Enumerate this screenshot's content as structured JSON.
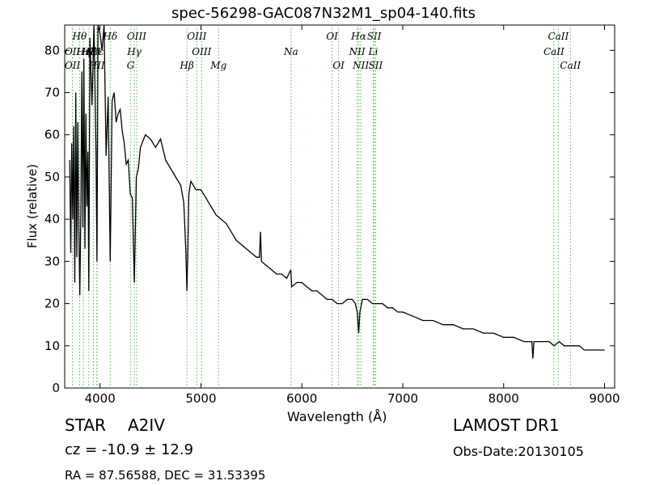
{
  "chart_data": {
    "type": "line",
    "title": "spec-56298-GAC087N32M1_sp04-140.fits",
    "xlabel": "Wavelength (Å)",
    "ylabel": "Flux (relative)",
    "xlim": [
      3650,
      9100
    ],
    "ylim": [
      0,
      86
    ],
    "xticks": [
      4000,
      5000,
      6000,
      7000,
      8000,
      9000
    ],
    "yticks": [
      0,
      10,
      20,
      30,
      40,
      50,
      60,
      70,
      80
    ],
    "grid": false,
    "series": [
      {
        "x": [
          3700,
          3710,
          3720,
          3730,
          3740,
          3750,
          3760,
          3770,
          3780,
          3790,
          3800,
          3810,
          3820,
          3830,
          3840,
          3850,
          3860,
          3870,
          3880,
          3889,
          3900,
          3920,
          3940,
          3960,
          3970,
          3980,
          4000,
          4020,
          4040,
          4060,
          4080,
          4101,
          4120,
          4140,
          4160,
          4180,
          4200,
          4220,
          4240,
          4260,
          4280,
          4300,
          4320,
          4340,
          4360,
          4380,
          4400,
          4450,
          4500,
          4550,
          4600,
          4650,
          4700,
          4750,
          4800,
          4830,
          4850,
          4861,
          4870,
          4880,
          4900,
          4950,
          5000,
          5050,
          5100,
          5150,
          5200,
          5250,
          5300,
          5350,
          5400,
          5450,
          5500,
          5550,
          5580,
          5590,
          5600,
          5650,
          5700,
          5750,
          5800,
          5850,
          5890,
          5900,
          5950,
          6000,
          6050,
          6100,
          6150,
          6200,
          6250,
          6300,
          6350,
          6400,
          6450,
          6500,
          6530,
          6550,
          6563,
          6575,
          6600,
          6650,
          6700,
          6750,
          6800,
          6850,
          6900,
          6950,
          7000,
          7100,
          7200,
          7300,
          7400,
          7500,
          7600,
          7700,
          7800,
          7900,
          8000,
          8100,
          8200,
          8280,
          8290,
          8300,
          8350,
          8400,
          8450,
          8500,
          8550,
          8600,
          8650,
          8662,
          8700,
          8750,
          8800,
          8850,
          8900,
          8950,
          9000
        ],
        "values": [
          54,
          32,
          58,
          40,
          62,
          25,
          70,
          31,
          63,
          38,
          22,
          42,
          75,
          38,
          78,
          33,
          65,
          43,
          56,
          23,
          83,
          67,
          86,
          56,
          30,
          86,
          84,
          80,
          86,
          55,
          69,
          30,
          68,
          70,
          63,
          65,
          66,
          61,
          58,
          53,
          54,
          46,
          45,
          25,
          50,
          52,
          57,
          60,
          59,
          57,
          59,
          54,
          52,
          50,
          48,
          44,
          33,
          23,
          32,
          46,
          49,
          47,
          47,
          45,
          43,
          41,
          40,
          39,
          37,
          35,
          34,
          33,
          32,
          31,
          31,
          37,
          30,
          29,
          28,
          27,
          27,
          26,
          28,
          24,
          25,
          25,
          24,
          23,
          23,
          22,
          21,
          21,
          20,
          20,
          21,
          21,
          20,
          18,
          13,
          18,
          21,
          21,
          20,
          20,
          20,
          19,
          19,
          18,
          18,
          17,
          16,
          16,
          15,
          15,
          14,
          14,
          13,
          13,
          12,
          12,
          11,
          11,
          7,
          11,
          11,
          11,
          11,
          10,
          11,
          10,
          10,
          10,
          10,
          10,
          9,
          9,
          9,
          9,
          9
        ]
      }
    ],
    "annotation_color": "#4cbb4c",
    "line_annotations": [
      {
        "label": "Hθ",
        "wavelength": 3797,
        "row": 0
      },
      {
        "label": "Hη",
        "wavelength": 3835,
        "row": 1
      },
      {
        "label": "Hζ",
        "wavelength": 3889,
        "row": 1
      },
      {
        "label": "Hε",
        "wavelength": 3970,
        "row": 1
      },
      {
        "label": "Hδ",
        "wavelength": 4101,
        "row": 0
      },
      {
        "label": "OII",
        "wavelength": 3727,
        "row": 1
      },
      {
        "label": "OII",
        "wavelength": 3727,
        "row": 2
      },
      {
        "label": "KII",
        "wavelength": 3934,
        "row": 1
      },
      {
        "label": "HII",
        "wavelength": 3968,
        "row": 2
      },
      {
        "label": "OIII",
        "wavelength": 4363,
        "row": 0
      },
      {
        "label": "Hγ",
        "wavelength": 4340,
        "row": 1
      },
      {
        "label": "G",
        "wavelength": 4304,
        "row": 2
      },
      {
        "label": "OIII",
        "wavelength": 4959,
        "row": 0
      },
      {
        "label": "OIII",
        "wavelength": 5007,
        "row": 1
      },
      {
        "label": "Hβ",
        "wavelength": 4861,
        "row": 2
      },
      {
        "label": "Mg",
        "wavelength": 5175,
        "row": 2
      },
      {
        "label": "Na",
        "wavelength": 5893,
        "row": 1
      },
      {
        "label": "OI",
        "wavelength": 6300,
        "row": 0
      },
      {
        "label": "OI",
        "wavelength": 6364,
        "row": 2
      },
      {
        "label": "Hα",
        "wavelength": 6563,
        "row": 0
      },
      {
        "label": "NII",
        "wavelength": 6548,
        "row": 1
      },
      {
        "label": "NII",
        "wavelength": 6584,
        "row": 2
      },
      {
        "label": "SII",
        "wavelength": 6717,
        "row": 0
      },
      {
        "label": "Li",
        "wavelength": 6708,
        "row": 1
      },
      {
        "label": "SII",
        "wavelength": 6731,
        "row": 2
      },
      {
        "label": "CaII",
        "wavelength": 8542,
        "row": 0
      },
      {
        "label": "CaII",
        "wavelength": 8498,
        "row": 1
      },
      {
        "label": "CaII",
        "wavelength": 8662,
        "row": 2
      }
    ]
  },
  "info": {
    "class": "STAR",
    "subclass": "A2IV",
    "redshift": "cz = -10.9 ± 12.9",
    "coords": "RA = 87.56588, DEC = 31.53395",
    "survey": "LAMOST DR1",
    "obs_date": "Obs-Date:20130105"
  }
}
